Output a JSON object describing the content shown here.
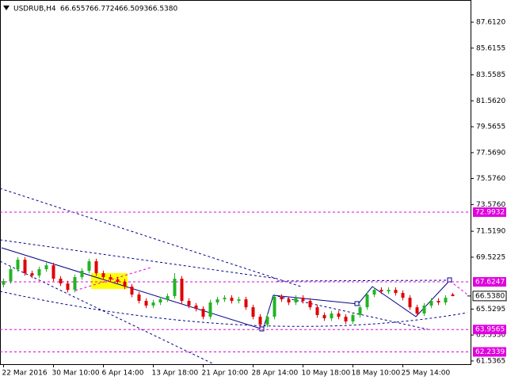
{
  "chart_data": {
    "type": "candlestick",
    "header": {
      "symbol": "USDRUB,H4",
      "ohlc": [
        "66.6557",
        "66.7724",
        "66.5093",
        "66.5380"
      ]
    },
    "x": [
      1,
      3,
      5,
      7,
      9,
      11,
      13,
      15,
      17,
      19,
      21,
      23,
      25,
      27,
      29,
      31,
      33,
      35,
      37,
      39,
      41,
      43,
      45,
      47,
      49,
      51,
      53,
      55,
      57,
      59,
      61,
      63,
      65,
      67,
      69,
      71,
      73,
      75,
      77,
      79,
      81,
      83,
      85,
      87,
      89,
      91,
      93,
      95,
      97,
      99,
      101,
      103,
      105,
      107,
      109,
      111,
      113,
      115,
      117,
      119,
      121,
      123,
      125,
      127
    ],
    "open": [
      67.4,
      67.68,
      68.6,
      69.33,
      68.29,
      68.11,
      68.6,
      68.9,
      67.87,
      67.5,
      67.01,
      67.99,
      68.48,
      69.21,
      68.29,
      67.99,
      67.81,
      67.63,
      67.26,
      66.65,
      66.16,
      65.8,
      66.04,
      66.28,
      66.53,
      67.87,
      66.16,
      65.8,
      65.55,
      64.94,
      66.04,
      66.28,
      66.4,
      66.16,
      66.28,
      65.67,
      64.94,
      64.33,
      64.94,
      66.47,
      66.28,
      66.04,
      66.4,
      66.16,
      65.67,
      65.07,
      64.82,
      65.19,
      64.94,
      64.58,
      65.07,
      65.67,
      66.65,
      67.01,
      66.89,
      67.01,
      66.77,
      66.4,
      65.67,
      65.19,
      65.8,
      66.16,
      66.04,
      66.6557
    ],
    "high": [
      67.88,
      68.8,
      69.53,
      69.53,
      68.49,
      68.8,
      69.1,
      69.1,
      68.07,
      67.7,
      68.19,
      68.68,
      69.41,
      69.41,
      68.49,
      68.19,
      68.01,
      67.83,
      67.46,
      66.85,
      66.36,
      66.24,
      66.48,
      66.73,
      68.3,
      68.07,
      66.36,
      66.0,
      65.75,
      66.24,
      66.48,
      66.6,
      66.6,
      66.48,
      66.48,
      65.87,
      65.14,
      65.14,
      66.67,
      66.67,
      66.48,
      66.6,
      66.6,
      66.36,
      65.87,
      65.27,
      65.39,
      65.39,
      65.14,
      65.27,
      65.87,
      66.85,
      67.21,
      67.21,
      67.21,
      67.21,
      66.97,
      66.6,
      65.87,
      66.0,
      66.36,
      66.36,
      66.6,
      66.7724
    ],
    "low": [
      67.2,
      67.48,
      68.4,
      68.09,
      67.91,
      67.91,
      68.4,
      67.67,
      67.3,
      66.81,
      66.81,
      67.79,
      68.28,
      68.09,
      67.79,
      67.61,
      67.43,
      67.06,
      66.45,
      65.96,
      65.6,
      65.6,
      65.84,
      66.08,
      66.33,
      65.96,
      65.6,
      65.35,
      64.74,
      64.74,
      65.84,
      66.08,
      65.96,
      65.96,
      65.47,
      64.74,
      64.13,
      64.13,
      64.74,
      66.08,
      65.84,
      65.84,
      65.96,
      65.47,
      64.87,
      64.62,
      64.62,
      64.74,
      64.38,
      64.38,
      64.87,
      65.47,
      66.45,
      66.69,
      66.69,
      66.57,
      66.2,
      65.47,
      64.99,
      64.99,
      65.6,
      65.84,
      65.84,
      66.5093
    ],
    "close": [
      67.68,
      68.6,
      69.33,
      68.29,
      68.11,
      68.6,
      68.9,
      67.87,
      67.5,
      67.01,
      67.99,
      68.48,
      69.21,
      68.29,
      67.99,
      67.81,
      67.63,
      67.26,
      66.65,
      66.16,
      65.8,
      66.04,
      66.28,
      66.53,
      67.87,
      66.16,
      65.8,
      65.55,
      64.94,
      66.04,
      66.28,
      66.4,
      66.16,
      66.28,
      65.67,
      64.94,
      64.33,
      64.94,
      66.47,
      66.28,
      66.04,
      66.4,
      66.16,
      65.67,
      65.07,
      64.82,
      65.19,
      64.94,
      64.58,
      65.07,
      65.67,
      66.65,
      67.01,
      66.89,
      67.01,
      66.77,
      66.4,
      65.67,
      65.19,
      65.8,
      66.16,
      66.04,
      66.4,
      66.538
    ],
    "up_color": "#22b422",
    "down_color": "#e00000",
    "xlim": [
      0,
      132
    ],
    "xticks": [
      {
        "value": 1,
        "label": "22 Mar 2016"
      },
      {
        "value": 15,
        "label": "30 Mar 10:00"
      },
      {
        "value": 29,
        "label": "6 Apr 14:00"
      },
      {
        "value": 43,
        "label": "13 Apr 18:00"
      },
      {
        "value": 57,
        "label": "21 Apr 10:00"
      },
      {
        "value": 71,
        "label": "28 Apr 14:00"
      },
      {
        "value": 85,
        "label": "10 May 18:00"
      },
      {
        "value": 99,
        "label": "18 May 10:00"
      },
      {
        "value": 113,
        "label": "25 May 14:00"
      }
    ],
    "ylim": [
      61.29,
      89.32
    ],
    "yticks": [
      {
        "value": 87.612,
        "label": "87.6120"
      },
      {
        "value": 85.6155,
        "label": "85.6155"
      },
      {
        "value": 83.5585,
        "label": "83.5585"
      },
      {
        "value": 81.562,
        "label": "81.5620"
      },
      {
        "value": 79.5655,
        "label": "79.5655"
      },
      {
        "value": 77.569,
        "label": "77.5690"
      },
      {
        "value": 75.576,
        "label": "75.5760"
      },
      {
        "value": 73.576,
        "label": "73.5760"
      },
      {
        "value": 71.519,
        "label": "71.5190"
      },
      {
        "value": 69.5225,
        "label": "69.5225"
      },
      {
        "value": 65.5295,
        "label": "65.5295"
      },
      {
        "value": 63.533,
        "label": "63.5330"
      },
      {
        "value": 61.5365,
        "label": "61.5365"
      }
    ],
    "levels": [
      72.9932,
      67.6247,
      63.9565,
      62.2339
    ],
    "level_color": "#e000e0",
    "current": {
      "value": 66.538,
      "label": "66.5380"
    }
  }
}
